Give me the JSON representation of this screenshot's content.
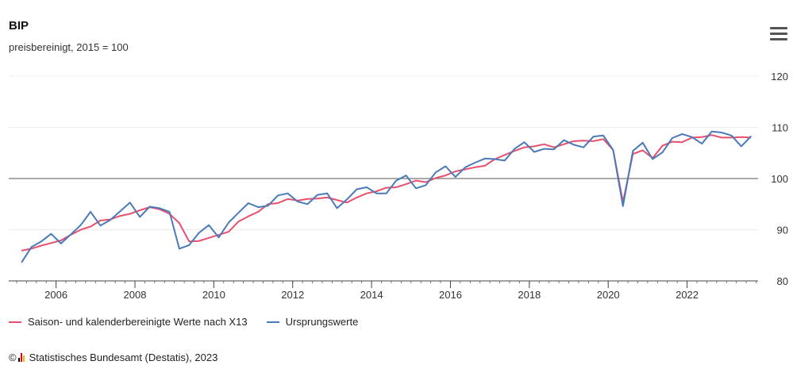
{
  "header": {
    "title": "BIP",
    "subtitle": "preisbereinigt, 2015 = 100"
  },
  "menu_icon": "hamburger-menu-icon",
  "legend": [
    {
      "label": "Saison- und kalenderbereinigte Werte nach X13",
      "color": "#e8506e"
    },
    {
      "label": "Ursprungswerte",
      "color": "#4a7ab8"
    }
  ],
  "credits": {
    "copyright": "©",
    "text": "Statistisches Bundesamt (Destatis), 2023",
    "logo_colors": [
      "#000000",
      "#e2001a",
      "#f5b400"
    ]
  },
  "chart_data": {
    "type": "line",
    "title": "BIP",
    "subtitle": "preisbereinigt, 2015 = 100",
    "x_ticks": [
      "2006",
      "2008",
      "2010",
      "2012",
      "2014",
      "2016",
      "2018",
      "2020",
      "2022"
    ],
    "y_ticks": [
      80,
      90,
      100,
      110,
      120
    ],
    "ylim": [
      80,
      120
    ],
    "xlim": [
      2004.8,
      2023.8
    ],
    "reference_line": 100,
    "grid": "horizontal",
    "legend_position": "bottom-left",
    "series": [
      {
        "name": "Saison- und kalenderbereinigte Werte nach X13",
        "color": "#e8506e",
        "x": [
          2005.125,
          2005.375,
          2005.625,
          2005.875,
          2006.125,
          2006.375,
          2006.625,
          2006.875,
          2007.125,
          2007.375,
          2007.625,
          2007.875,
          2008.125,
          2008.375,
          2008.625,
          2008.875,
          2009.125,
          2009.375,
          2009.625,
          2009.875,
          2010.125,
          2010.375,
          2010.625,
          2010.875,
          2011.125,
          2011.375,
          2011.625,
          2011.875,
          2012.125,
          2012.375,
          2012.625,
          2012.875,
          2013.125,
          2013.375,
          2013.625,
          2013.875,
          2014.125,
          2014.375,
          2014.625,
          2014.875,
          2015.125,
          2015.375,
          2015.625,
          2015.875,
          2016.125,
          2016.375,
          2016.625,
          2016.875,
          2017.125,
          2017.375,
          2017.625,
          2017.875,
          2018.125,
          2018.375,
          2018.625,
          2018.875,
          2019.125,
          2019.375,
          2019.625,
          2019.875,
          2020.125,
          2020.375,
          2020.625,
          2020.875,
          2021.125,
          2021.375,
          2021.625,
          2021.875,
          2022.125,
          2022.375,
          2022.625,
          2022.875,
          2023.125,
          2023.375,
          2023.625
        ],
        "values": [
          85.9,
          86.3,
          86.9,
          87.4,
          87.9,
          89.0,
          90.0,
          90.6,
          91.8,
          92.0,
          92.7,
          93.1,
          93.8,
          94.4,
          94.0,
          93.1,
          91.3,
          87.7,
          87.8,
          88.4,
          89.0,
          89.6,
          91.6,
          92.6,
          93.5,
          95.0,
          95.2,
          96.0,
          95.7,
          96.0,
          96.1,
          96.3,
          95.8,
          95.3,
          96.3,
          97.1,
          97.5,
          98.2,
          98.3,
          98.9,
          99.6,
          99.3,
          100.1,
          100.6,
          101.4,
          101.8,
          102.2,
          102.5,
          103.8,
          104.6,
          105.4,
          106.1,
          106.3,
          106.7,
          106.1,
          106.7,
          107.3,
          107.4,
          107.3,
          107.7,
          105.6,
          95.4,
          104.8,
          105.5,
          104.0,
          106.4,
          107.2,
          107.1,
          108.0,
          108.1,
          108.5,
          108.0,
          108.0,
          108.1,
          108.0
        ]
      },
      {
        "name": "Ursprungswerte",
        "color": "#4a7ab8",
        "x": [
          2005.125,
          2005.375,
          2005.625,
          2005.875,
          2006.125,
          2006.375,
          2006.625,
          2006.875,
          2007.125,
          2007.375,
          2007.625,
          2007.875,
          2008.125,
          2008.375,
          2008.625,
          2008.875,
          2009.125,
          2009.375,
          2009.625,
          2009.875,
          2010.125,
          2010.375,
          2010.625,
          2010.875,
          2011.125,
          2011.375,
          2011.625,
          2011.875,
          2012.125,
          2012.375,
          2012.625,
          2012.875,
          2013.125,
          2013.375,
          2013.625,
          2013.875,
          2014.125,
          2014.375,
          2014.625,
          2014.875,
          2015.125,
          2015.375,
          2015.625,
          2015.875,
          2016.125,
          2016.375,
          2016.625,
          2016.875,
          2017.125,
          2017.375,
          2017.625,
          2017.875,
          2018.125,
          2018.375,
          2018.625,
          2018.875,
          2019.125,
          2019.375,
          2019.625,
          2019.875,
          2020.125,
          2020.375,
          2020.625,
          2020.875,
          2021.125,
          2021.375,
          2021.625,
          2021.875,
          2022.125,
          2022.375,
          2022.625,
          2022.875,
          2023.125,
          2023.375,
          2023.625
        ],
        "values": [
          83.6,
          86.6,
          87.7,
          89.2,
          87.3,
          89.1,
          90.9,
          93.5,
          90.8,
          91.9,
          93.6,
          95.3,
          92.5,
          94.5,
          94.2,
          93.5,
          86.3,
          87.0,
          89.4,
          90.9,
          88.5,
          91.4,
          93.3,
          95.2,
          94.4,
          94.7,
          96.7,
          97.1,
          95.5,
          95.0,
          96.8,
          97.1,
          94.2,
          95.9,
          97.9,
          98.3,
          97.1,
          97.1,
          99.6,
          100.6,
          98.1,
          98.7,
          101.2,
          102.4,
          100.3,
          102.2,
          103.1,
          103.9,
          103.8,
          103.5,
          105.8,
          107.1,
          105.2,
          105.8,
          105.7,
          107.5,
          106.6,
          106.1,
          108.2,
          108.4,
          105.6,
          94.6,
          105.4,
          107.0,
          103.8,
          105.1,
          107.9,
          108.7,
          108.1,
          106.8,
          109.2,
          109.0,
          108.4,
          106.3,
          108.3
        ]
      }
    ]
  }
}
